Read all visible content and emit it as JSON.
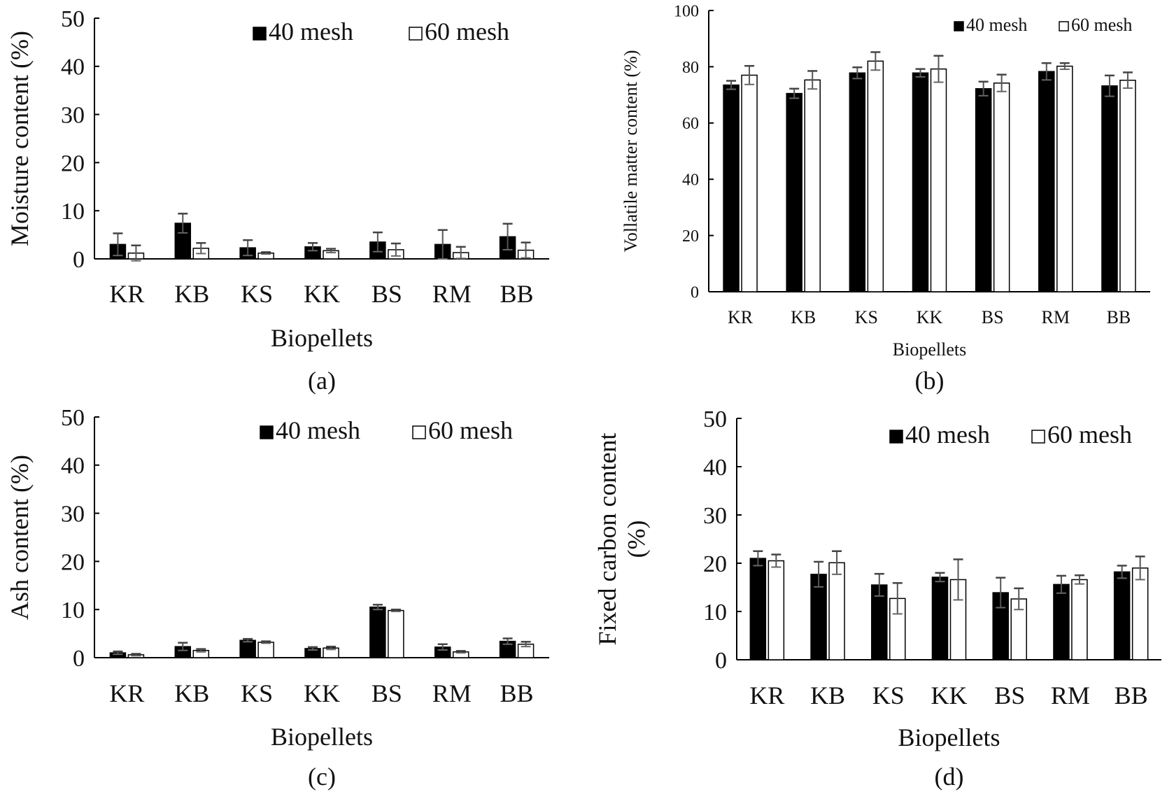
{
  "chart_data": [
    {
      "type": "bar",
      "panel_label": "(a)",
      "xlabel": "Biopellets",
      "ylabel": "Moisture content (%)",
      "ylim": [
        0,
        50
      ],
      "yticks": [
        0,
        10,
        20,
        30,
        40,
        50
      ],
      "grid": false,
      "legend_position": "top-right",
      "categories": [
        "KR",
        "KB",
        "KS",
        "KK",
        "BS",
        "RM",
        "BB"
      ],
      "series": [
        {
          "name": "40 mesh",
          "color": "#000000",
          "values": [
            3.0,
            7.4,
            2.3,
            2.5,
            3.5,
            3.0,
            4.6
          ],
          "errors": [
            2.3,
            2.0,
            1.6,
            0.8,
            2.0,
            3.0,
            2.7
          ]
        },
        {
          "name": "60 mesh",
          "color": "#ffffff",
          "values": [
            1.2,
            2.2,
            1.2,
            1.7,
            1.9,
            1.3,
            1.8
          ],
          "errors": [
            1.6,
            1.1,
            0.2,
            0.4,
            1.3,
            1.2,
            1.6
          ]
        }
      ]
    },
    {
      "type": "bar",
      "panel_label": "(b)",
      "xlabel": "Biopellets",
      "ylabel": "Vollatile matter content (%)",
      "ylim": [
        0,
        100
      ],
      "yticks": [
        0,
        20,
        40,
        60,
        80,
        100
      ],
      "grid": false,
      "legend_position": "top-right",
      "categories": [
        "KR",
        "KB",
        "KS",
        "KK",
        "BS",
        "RM",
        "BB"
      ],
      "series": [
        {
          "name": "40 mesh",
          "color": "#000000",
          "values": [
            73.5,
            70.5,
            77.8,
            77.8,
            72.2,
            78.3,
            73.2
          ],
          "errors": [
            1.5,
            1.7,
            2.0,
            1.4,
            2.5,
            3.0,
            3.7
          ]
        },
        {
          "name": "60 mesh",
          "color": "#ffffff",
          "values": [
            77.0,
            75.3,
            82.0,
            79.2,
            74.2,
            80.2,
            75.2
          ],
          "errors": [
            3.3,
            3.2,
            3.2,
            4.7,
            3.0,
            1.1,
            2.8
          ]
        }
      ]
    },
    {
      "type": "bar",
      "panel_label": "(c)",
      "xlabel": "Biopellets",
      "ylabel": "Ash content (%)",
      "ylim": [
        0,
        50
      ],
      "yticks": [
        0,
        10,
        20,
        30,
        40,
        50
      ],
      "grid": false,
      "legend_position": "top-right",
      "categories": [
        "KR",
        "KB",
        "KS",
        "KK",
        "BS",
        "RM",
        "BB"
      ],
      "series": [
        {
          "name": "40 mesh",
          "color": "#000000",
          "values": [
            1.0,
            2.3,
            3.6,
            1.9,
            10.5,
            2.2,
            3.4
          ],
          "errors": [
            0.3,
            0.8,
            0.3,
            0.3,
            0.5,
            0.6,
            0.6
          ]
        },
        {
          "name": "60 mesh",
          "color": "#ffffff",
          "values": [
            0.6,
            1.5,
            3.2,
            2.0,
            9.8,
            1.2,
            2.8
          ],
          "errors": [
            0.2,
            0.3,
            0.2,
            0.3,
            0.2,
            0.2,
            0.5
          ]
        }
      ]
    },
    {
      "type": "bar",
      "panel_label": "(d)",
      "xlabel": "Biopellets",
      "ylabel": "Fixed carbon content (%)",
      "ylim": [
        0,
        50
      ],
      "yticks": [
        0,
        10,
        20,
        30,
        40,
        50
      ],
      "grid": false,
      "legend_position": "top-right",
      "categories": [
        "KR",
        "KB",
        "KS",
        "KK",
        "BS",
        "RM",
        "BB"
      ],
      "series": [
        {
          "name": "40 mesh",
          "color": "#000000",
          "values": [
            21.0,
            17.7,
            15.5,
            17.1,
            13.9,
            15.6,
            18.2
          ],
          "errors": [
            1.5,
            2.6,
            2.3,
            0.9,
            3.1,
            1.8,
            1.3
          ]
        },
        {
          "name": "60 mesh",
          "color": "#ffffff",
          "values": [
            20.5,
            20.1,
            12.7,
            16.6,
            12.6,
            16.6,
            19.0
          ],
          "errors": [
            1.3,
            2.4,
            3.2,
            4.2,
            2.2,
            0.9,
            2.4
          ]
        }
      ]
    }
  ]
}
